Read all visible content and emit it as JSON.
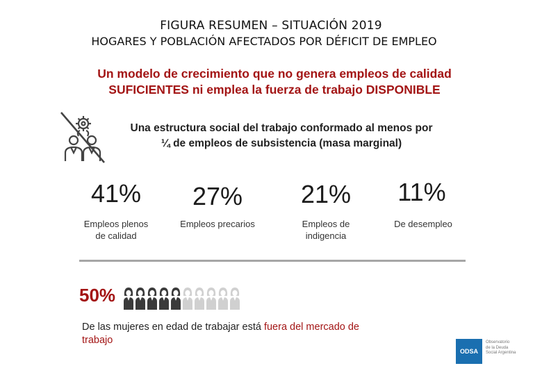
{
  "title": {
    "line1": "FIGURA RESUMEN – SITUACIÓN 2019",
    "line2": "HOGARES Y POBLACIÓN AFECTADOS POR DÉFICIT DE EMPLEO"
  },
  "headline": {
    "line1": "Un modelo de crecimiento que no genera empleos de calidad",
    "line2": "SUFICIENTES ni emplea la fuerza de trabajo DISPONIBLE"
  },
  "structure": {
    "icon": "unemployed-worker-gear-icon",
    "line1": "Una estructura social del trabajo conformado al menos por",
    "line2": "¼ de empleos de subsistencia (masa marginal)"
  },
  "stats": [
    {
      "value": "41%",
      "label_line1": "Empleos plenos",
      "label_line2": "de calidad"
    },
    {
      "value": "27%",
      "label_line1": "Empleos precarios",
      "label_line2": ""
    },
    {
      "value": "21%",
      "label_line1": "Empleos de",
      "label_line2": "indigencia"
    },
    {
      "value": "11%",
      "label_line1": "De desempleo",
      "label_line2": ""
    }
  ],
  "women": {
    "value": "50%",
    "icons_filled": 5,
    "icons_total": 10,
    "text_prefix": "De las mujeres en edad de trabajar está ",
    "text_highlight": "fuera del mercado de",
    "text_line2": "trabajo"
  },
  "logo": {
    "abbr": "ODSA",
    "line1": "Observatorio",
    "line2": "de la Deuda",
    "line3": "Social Argentina"
  },
  "colors": {
    "accent_red": "#a31515",
    "divider_gray": "#a6a6a6",
    "person_filled": "#3a3a3a",
    "person_empty": "#d0d0d0",
    "logo_blue": "#1a6fb0"
  }
}
